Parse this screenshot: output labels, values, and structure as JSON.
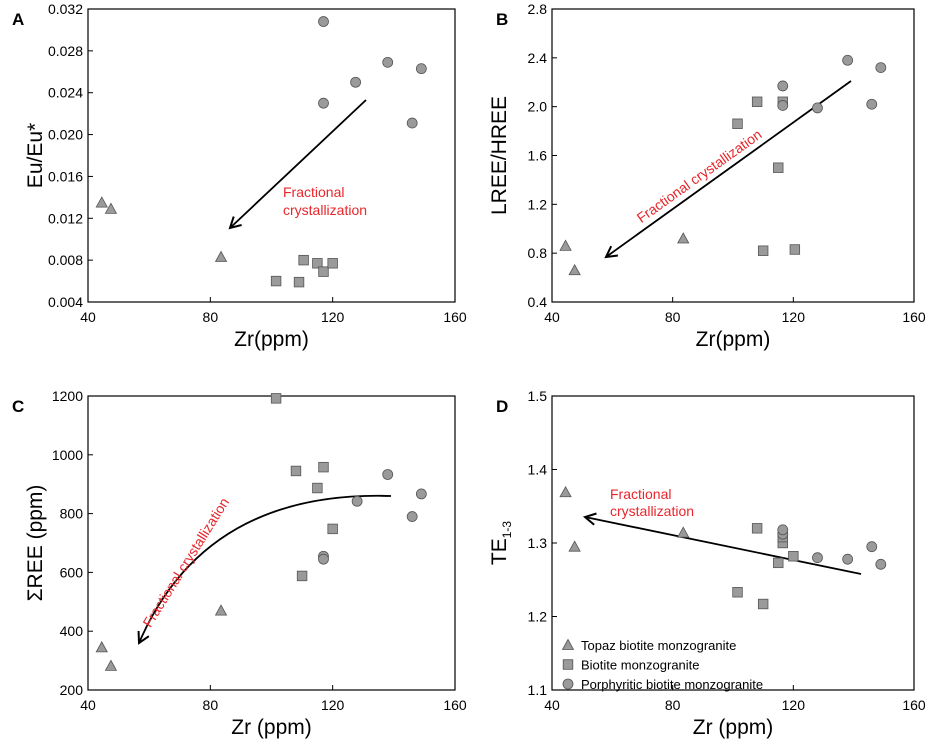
{
  "figure": {
    "legend": [
      {
        "marker": "triangle",
        "label": "Topaz biotite monzogranite"
      },
      {
        "marker": "square",
        "label": "Biotite monzogranite"
      },
      {
        "marker": "circle",
        "label": "Porphyritic biotite monzogranite"
      }
    ],
    "colors": {
      "marker_fill": "#9a9a9a",
      "marker_stroke": "#555555",
      "annotation": "#e8262b",
      "axis": "#000000"
    }
  },
  "chart_data": [
    {
      "panel": "A",
      "type": "scatter",
      "xlabel": "Zr(ppm)",
      "ylabel": "Eu/Eu*",
      "xlim": [
        40,
        160
      ],
      "ylim": [
        0.004,
        0.032
      ],
      "xticks": [
        "40",
        "80",
        "120",
        "160"
      ],
      "yticks": [
        "0.004",
        "0.008",
        "0.012",
        "0.016",
        "0.020",
        "0.024",
        "0.028",
        "0.032"
      ],
      "annotation": {
        "lines": [
          "Fractional",
          "crystallization"
        ]
      },
      "series": [
        {
          "name": "Topaz biotite monzogranite",
          "marker": "triangle",
          "x": [
            44.5,
            47.5,
            83.5
          ],
          "y": [
            0.0135,
            0.0129,
            0.0083
          ]
        },
        {
          "name": "Biotite monzogranite",
          "marker": "square",
          "x": [
            101.5,
            109,
            110.5,
            115,
            117,
            120
          ],
          "y": [
            0.006,
            0.0059,
            0.008,
            0.0077,
            0.0069,
            0.0077
          ]
        },
        {
          "name": "Porphyritic biotite monzogranite",
          "marker": "circle",
          "x": [
            117,
            117,
            127.5,
            138,
            146,
            149
          ],
          "y": [
            0.0308,
            0.023,
            0.025,
            0.0269,
            0.0211,
            0.0263
          ]
        }
      ]
    },
    {
      "panel": "B",
      "type": "scatter",
      "xlabel": "Zr(ppm)",
      "ylabel": "LREE/HREE",
      "xlim": [
        40,
        160
      ],
      "ylim": [
        0.4,
        2.8
      ],
      "xticks": [
        "40",
        "80",
        "120",
        "160"
      ],
      "yticks": [
        "0.4",
        "0.8",
        "1.2",
        "1.6",
        "2.0",
        "2.4",
        "2.8"
      ],
      "annotation": {
        "lines": [
          "Fractional crystallization"
        ]
      },
      "series": [
        {
          "name": "Topaz biotite monzogranite",
          "marker": "triangle",
          "x": [
            44.5,
            47.5,
            83.5
          ],
          "y": [
            0.86,
            0.66,
            0.92
          ]
        },
        {
          "name": "Biotite monzogranite",
          "marker": "square",
          "x": [
            101.5,
            108,
            110,
            115,
            116.5,
            120.5
          ],
          "y": [
            1.86,
            2.04,
            0.82,
            1.5,
            2.04,
            0.83
          ]
        },
        {
          "name": "Porphyritic biotite monzogranite",
          "marker": "circle",
          "x": [
            116.5,
            116.5,
            128,
            138,
            146,
            149
          ],
          "y": [
            2.17,
            2.01,
            1.99,
            2.38,
            2.02,
            2.32
          ]
        }
      ]
    },
    {
      "panel": "C",
      "type": "scatter",
      "xlabel": "Zr (ppm)",
      "ylabel": "ΣREE (ppm)",
      "xlim": [
        40,
        160
      ],
      "ylim": [
        200,
        1200
      ],
      "xticks": [
        "40",
        "80",
        "120",
        "160"
      ],
      "yticks": [
        "200",
        "400",
        "600",
        "800",
        "1000",
        "1200"
      ],
      "annotation": {
        "lines": [
          "Fractional crystallization"
        ]
      },
      "series": [
        {
          "name": "Topaz biotite monzogranite",
          "marker": "triangle",
          "x": [
            44.5,
            47.5,
            83.5
          ],
          "y": [
            345,
            282,
            470
          ]
        },
        {
          "name": "Biotite monzogranite",
          "marker": "square",
          "x": [
            101.5,
            108,
            110,
            115,
            117,
            120
          ],
          "y": [
            1192,
            945,
            588,
            887,
            958,
            748
          ]
        },
        {
          "name": "Porphyritic biotite monzogranite",
          "marker": "circle",
          "x": [
            117,
            117,
            128,
            138,
            146,
            149
          ],
          "y": [
            655,
            645,
            842,
            933,
            790,
            867
          ]
        }
      ]
    },
    {
      "panel": "D",
      "type": "scatter",
      "xlabel": "Zr (ppm)",
      "ylabel": "TE",
      "ylabel_sub": "1-3",
      "xlim": [
        40,
        160
      ],
      "ylim": [
        1.1,
        1.5
      ],
      "xticks": [
        "40",
        "80",
        "120",
        "160"
      ],
      "yticks": [
        "1.1",
        "1.2",
        "1.3",
        "1.4",
        "1.5"
      ],
      "annotation": {
        "lines": [
          "Fractional",
          "crystallization"
        ]
      },
      "series": [
        {
          "name": "Topaz biotite monzogranite",
          "marker": "triangle",
          "x": [
            44.5,
            47.5,
            83.5
          ],
          "y": [
            1.369,
            1.295,
            1.314
          ]
        },
        {
          "name": "Biotite monzogranite",
          "marker": "square",
          "x": [
            101.5,
            108,
            110,
            115,
            116.5,
            116.5,
            120
          ],
          "y": [
            1.233,
            1.32,
            1.217,
            1.273,
            1.3,
            1.308,
            1.282
          ]
        },
        {
          "name": "Porphyritic biotite monzogranite",
          "marker": "circle",
          "x": [
            116.5,
            116.5,
            128,
            138,
            146,
            149
          ],
          "y": [
            1.312,
            1.318,
            1.28,
            1.278,
            1.295,
            1.271
          ]
        }
      ]
    }
  ]
}
